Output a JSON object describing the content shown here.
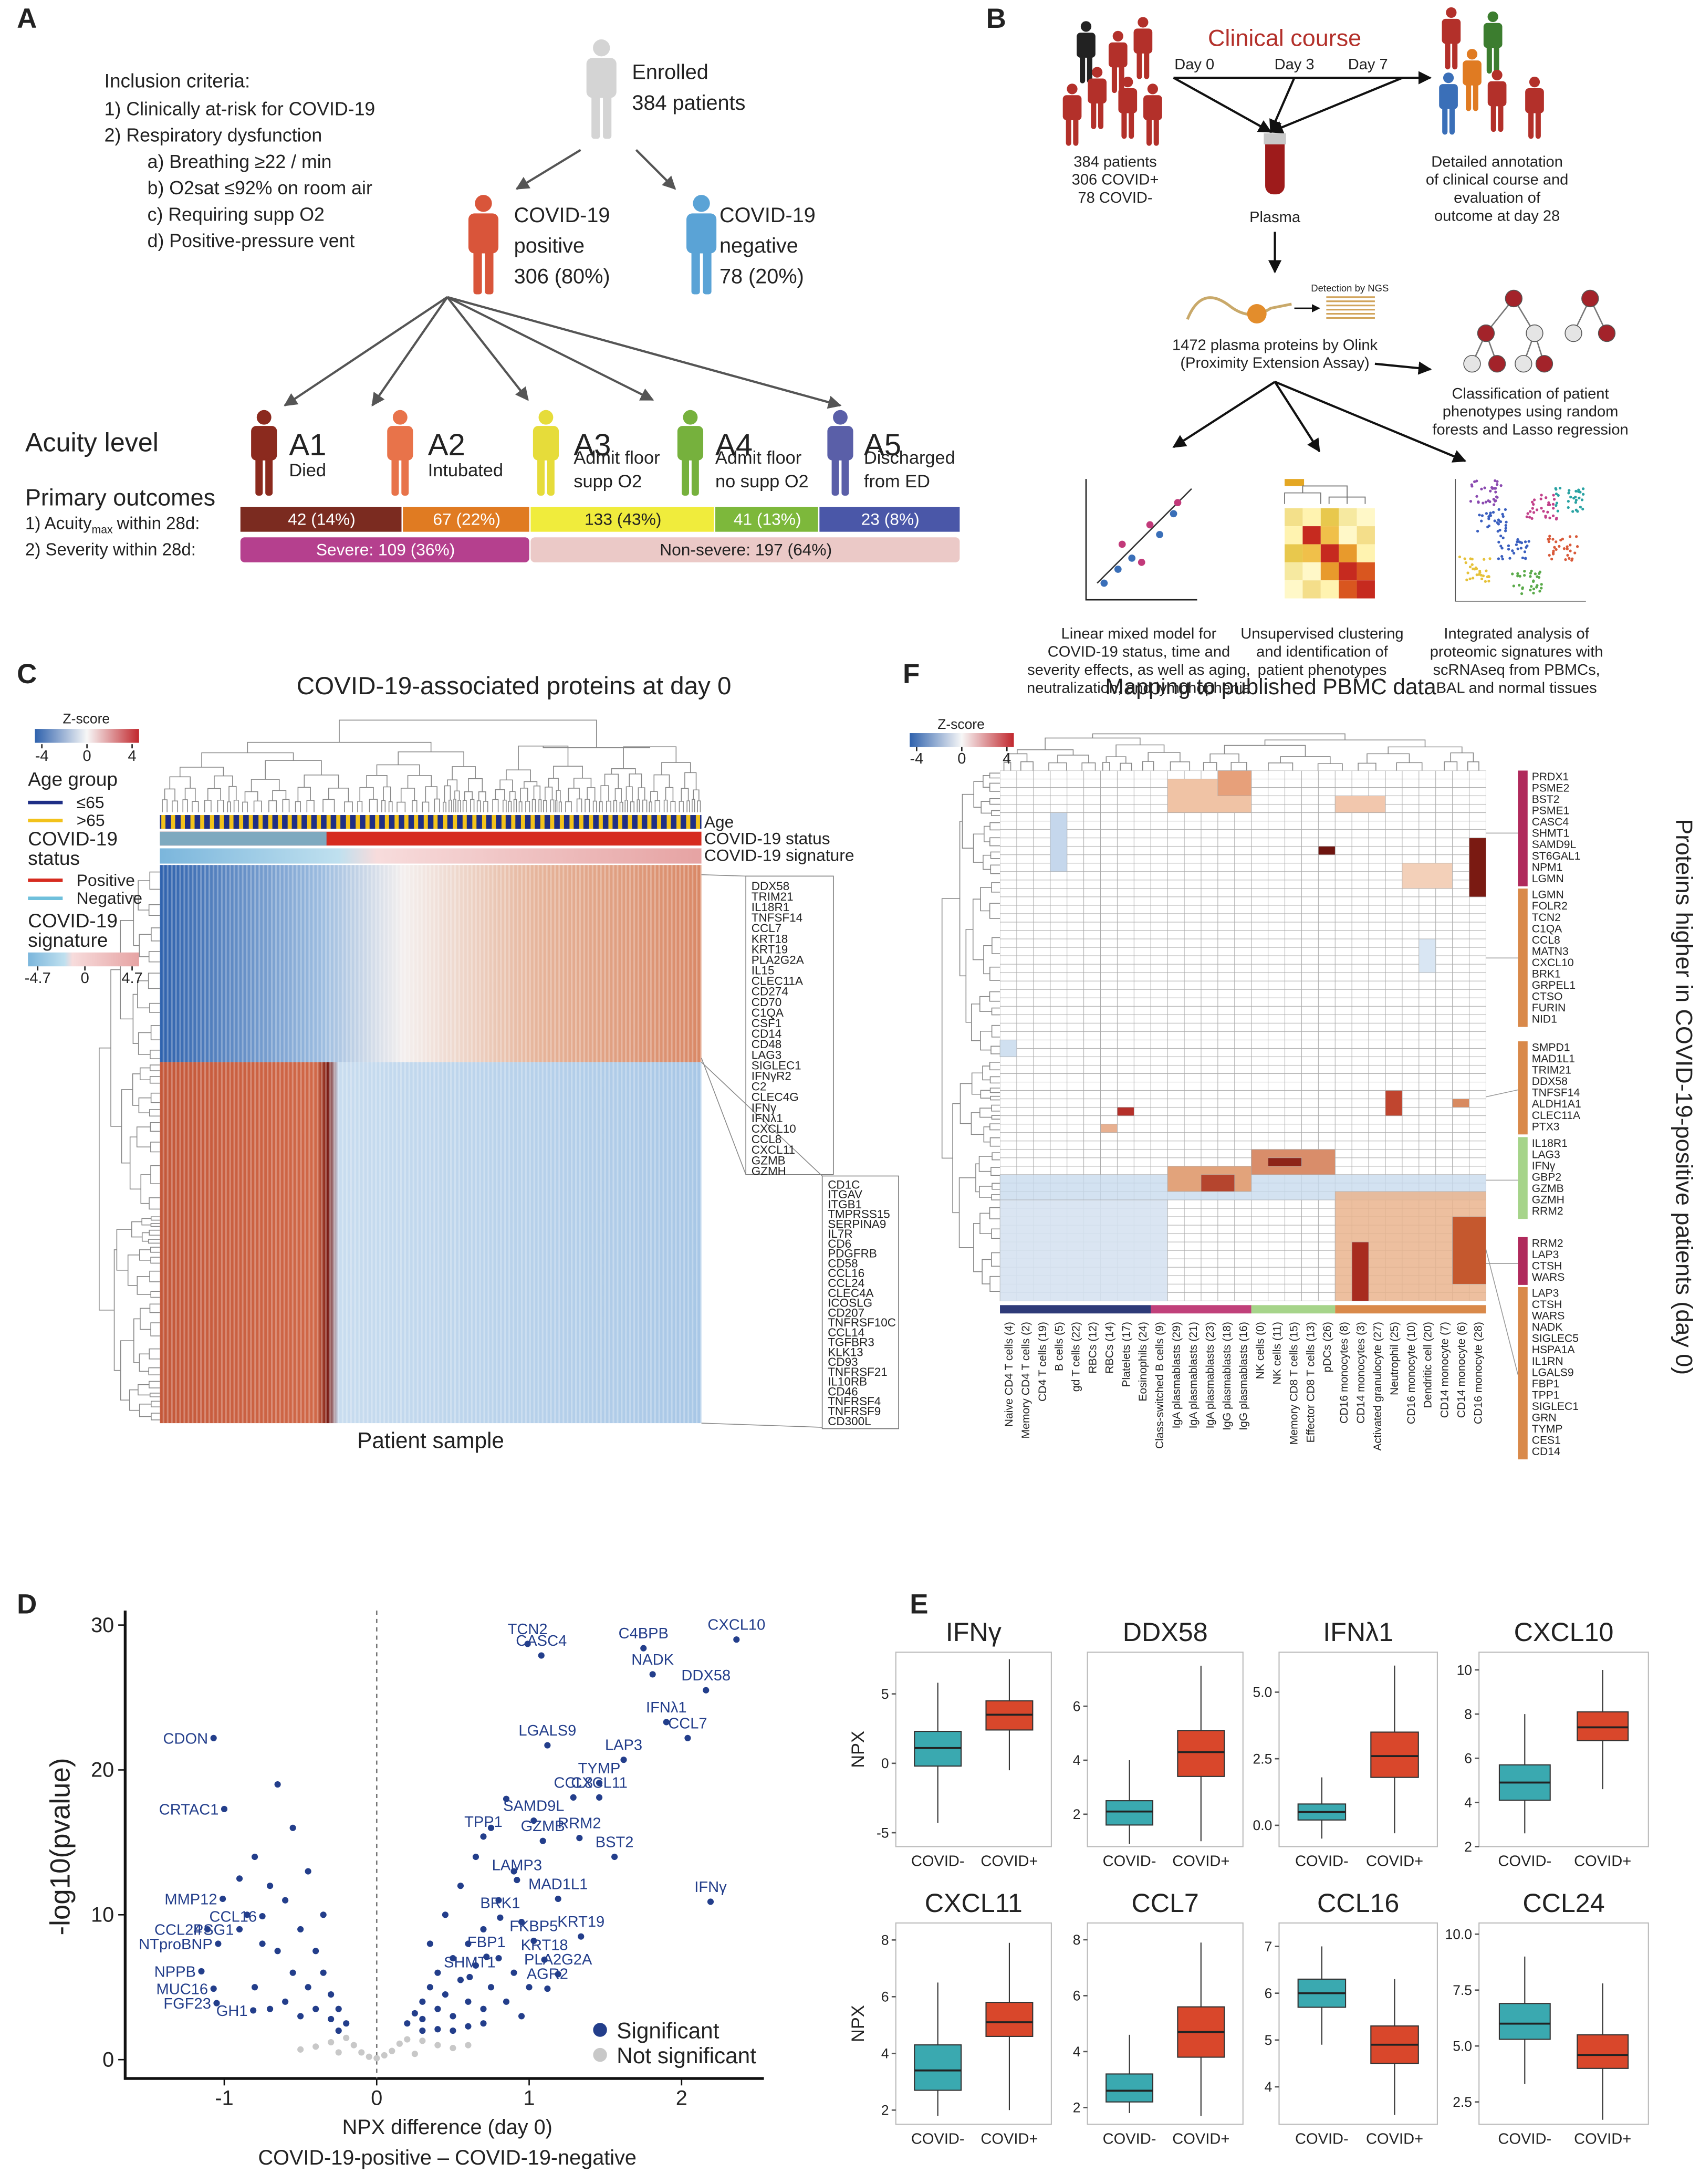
{
  "panel_a": {
    "label": "A",
    "inclusion_title": "Inclusion criteria:",
    "criteria": [
      "1)  Clinically at-risk for COVID-19",
      "2)  Respiratory dysfunction"
    ],
    "subcriteria": [
      "a)  Breathing ≥22 / min",
      "b)  O2sat ≤92% on room air",
      "c)  Requiring supp O2",
      "d)  Positive-pressure vent"
    ],
    "enrolled": [
      "Enrolled",
      "384 patients"
    ],
    "positive": [
      "COVID-19",
      "positive",
      "306 (80%)"
    ],
    "negative": [
      "COVID-19",
      "negative",
      "78 (20%)"
    ],
    "acuity_title": "Acuity level",
    "levels": [
      {
        "name": "A1",
        "desc": [
          "Died"
        ],
        "color": "#8b2a1e"
      },
      {
        "name": "A2",
        "desc": [
          "Intubated"
        ],
        "color": "#e8734a"
      },
      {
        "name": "A3",
        "desc": [
          "Admit floor",
          "supp O2"
        ],
        "color": "#e6dc3a"
      },
      {
        "name": "A4",
        "desc": [
          "Admit floor",
          "no supp O2"
        ],
        "color": "#76b13d"
      },
      {
        "name": "A5",
        "desc": [
          "Discharged",
          "from ED"
        ],
        "color": "#5a5fa8"
      }
    ],
    "outcomes_title": "Primary outcomes",
    "outcome1": {
      "prefix": "1) Acuity",
      "sub": "max",
      "suffix": "within 28d:"
    },
    "outcome2": "2) Severity within 28d:",
    "acuity_segments": [
      {
        "label": "42 (14%)",
        "color": "#7b2b20"
      },
      {
        "label": "67 (22%)",
        "color": "#e07b22"
      },
      {
        "label": "133 (43%)",
        "color": "#f0ec3c"
      },
      {
        "label": "41 (13%)",
        "color": "#7db83b"
      },
      {
        "label": "23 (8%)",
        "color": "#4a57a8"
      }
    ],
    "severity_segments": [
      {
        "label": "Severe: 109 (36%)",
        "color": "#b5408e"
      },
      {
        "label": "Non-severe: 197 (64%)",
        "color": "#ebc9c7"
      }
    ]
  },
  "panel_b": {
    "label": "B",
    "course_title": "Clinical course",
    "days": [
      "Day 0",
      "Day 3",
      "Day 7"
    ],
    "cohort": [
      "384 patients",
      "306 COVID+",
      "78 COVID-"
    ],
    "annotation": [
      "Detailed annotation",
      "of clinical course and",
      "evaluation of",
      "outcome at day 28"
    ],
    "plasma": "Plasma",
    "ngs": "Detection by NGS",
    "olink": [
      "1472 plasma proteins by Olink",
      "(Proximity Extension Assay)"
    ],
    "classification": [
      "Classification of patient",
      "phenotypes using random",
      "forests and Lasso regression"
    ],
    "linear": [
      "Linear mixed model for",
      "COVID-19 status, time and",
      "severity effects, as well as aging,",
      "neutralization, and lymphophenia"
    ],
    "clustering": [
      "Unsupervised clustering",
      "and identification of",
      "patient phenotypes"
    ],
    "integrated": [
      "Integrated analysis of",
      "proteomic signatures with",
      "scRNAseq from PBMCs,",
      "BAL and normal tissues"
    ]
  },
  "panel_c": {
    "label": "C",
    "title": "COVID-19-associated proteins at day 0",
    "zscore_title": "Z-score",
    "zscore_ticks": [
      -4,
      0,
      4
    ],
    "age_title": "Age group",
    "age_items": [
      {
        "label": "≤65",
        "color": "#1f2f86"
      },
      {
        "label": ">65",
        "color": "#f2c21b"
      }
    ],
    "status_title": [
      "COVID-19",
      "status"
    ],
    "status_items": [
      {
        "label": "Positive",
        "color": "#d62b1f"
      },
      {
        "label": "Negative",
        "color": "#6fc0dc"
      }
    ],
    "signature_title": [
      "COVID-19",
      "signature"
    ],
    "signature_ticks": [
      {
        "value": -4.7,
        "label": "-4.7"
      },
      0,
      {
        "value": 4.7,
        "label": "4.7"
      }
    ],
    "row_annotations": [
      "Age",
      "COVID-19 status",
      "COVID-19 signature"
    ],
    "xlabel": "Patient sample",
    "genes_up": [
      "DDX58",
      "TRIM21",
      "IL18R1",
      "TNFSF14",
      "CCL7",
      "KRT18",
      "KRT19",
      "PLA2G2A",
      "IL15",
      "CLEC11A",
      "CD274",
      "CD70",
      "C1QA",
      "CSF1",
      "CD14",
      "CD48",
      "LAG3",
      "SIGLEC1",
      "IFNγR2",
      "C2",
      "CLEC4G",
      "IFNγ",
      "IFNλ1",
      "CXCL10",
      "CCL8",
      "CXCL11",
      "GZMB",
      "GZMH"
    ],
    "genes_down": [
      "CD1C",
      "ITGAV",
      "ITGB1",
      "TMPRSS15",
      "SERPINA9",
      "IL7R",
      "CD6",
      "PDGFRB",
      "CD58",
      "CCL16",
      "CCL24",
      "CLEC4A",
      "ICOSLG",
      "CD207",
      "TNFRSF10C",
      "CCL14",
      "TGFBR3",
      "KLK13",
      "CD93",
      "TNFRSF21",
      "IL10RB",
      "CD46",
      "TNFRSF4",
      "TNFRSF9",
      "CD300L"
    ]
  },
  "panel_f": {
    "label": "F",
    "title": "Mapping to published PBMC data",
    "zscore_title": "Z-score",
    "zscore_ticks": [
      -4,
      0,
      4
    ],
    "side_label": "Proteins higher in COVID-19-positive patients (day 0)",
    "columns": [
      "Naive CD4 T cells (4)",
      "Memory CD4 T cells (2)",
      "CD4 T cells (19)",
      "B cells (5)",
      "gd T cells (22)",
      "RBCs (12)",
      "RBCs (14)",
      "Platelets (17)",
      "Eosinophils (24)",
      "Class-switched B cells (9)",
      "IgA plasmablasts (29)",
      "IgA plasmablasts (21)",
      "IgA plasmablasts (23)",
      "IgG plasmablasts (18)",
      "IgG plasmablasts (16)",
      "NK cells (0)",
      "NK cells (11)",
      "Memory CD8 T cells (15)",
      "Effector CD8 T cells (13)",
      "pDCs (26)",
      "CD16 monocytes (8)",
      "CD14 monocytes (3)",
      "Activated granulocyte (27)",
      "Neutrophil (25)",
      "CD16 monocyte (10)",
      "Dendritic cell (20)",
      "CD14 monocyte (7)",
      "CD14 monocyte (6)",
      "CD16 monocyte (28)"
    ],
    "group_colors": [
      "#2e3a78",
      "#c0407a",
      "#a6d48a",
      "#d9894a"
    ],
    "gene_groups": [
      {
        "color": "#b02a5c",
        "genes": [
          "PRDX1",
          "PSME2",
          "BST2",
          "PSME1",
          "CASC4",
          "SHMT1",
          "SAMD9L",
          "ST6GAL1",
          "NPM1",
          "LGMN"
        ]
      },
      {
        "color": "#d9894a",
        "genes": [
          "LGMN",
          "FOLR2",
          "TCN2",
          "C1QA",
          "CCL8",
          "MATN3",
          "CXCL10",
          "BRK1",
          "GRPEL1",
          "CTSO",
          "FURIN",
          "NID1"
        ]
      },
      {
        "color": "#d9894a",
        "genes": [
          "SMPD1",
          "MAD1L1",
          "TRIM21",
          "DDX58",
          "TNFSF14",
          "ALDH1A1",
          "CLEC11A",
          "PTX3"
        ]
      },
      {
        "color": "#a6d48a",
        "genes": [
          "IL18R1",
          "LAG3",
          "IFNγ",
          "GBP2",
          "GZMB",
          "GZMH",
          "RRM2"
        ]
      },
      {
        "color": "#b02a5c",
        "genes": [
          "RRM2",
          "LAP3",
          "CTSH",
          "WARS"
        ]
      },
      {
        "color": "#d9894a",
        "genes": [
          "LAP3",
          "CTSH",
          "WARS",
          "NADK",
          "SIGLEC5",
          "HSPA1A",
          "IL1RN",
          "LGALS9",
          "FBP1",
          "TPP1",
          "SIGLEC1",
          "GRN",
          "TYMP",
          "CES1",
          "CD14"
        ]
      }
    ]
  },
  "panel_d": {
    "label": "D"
  },
  "panel_e": {
    "label": "E",
    "ylabel": "NPX"
  },
  "chart_data": [
    {
      "type": "scatter",
      "ylabel": "-log10(pvalue)",
      "xlabel": [
        "NPX difference (day 0)",
        "COVID-19-positive – COVID-19-negative"
      ],
      "xlim": [
        -1.65,
        2.54
      ],
      "ylim": [
        -1.3,
        31
      ],
      "xticks": [
        -1,
        0,
        1,
        2
      ],
      "yticks": [
        0,
        10,
        20,
        30
      ],
      "series": [
        {
          "name": "Significant",
          "color": "#233e8b",
          "x": [
            0.2,
            0.25,
            0.3,
            0.3,
            0.35,
            0.4,
            0.4,
            0.45,
            0.5,
            0.5,
            0.55,
            0.6,
            0.6,
            0.65,
            0.7,
            0.7,
            0.75,
            0.8,
            0.8,
            0.85,
            0.9,
            0.9,
            0.95,
            1.0,
            0.35,
            0.45,
            0.55,
            0.65,
            0.75,
            0.85,
            0.5,
            0.6,
            0.4,
            0.3,
            0.7,
            0.95,
            -0.2,
            -0.25,
            -0.3,
            -0.3,
            -0.35,
            -0.4,
            -0.4,
            -0.45,
            -0.5,
            -0.5,
            -0.55,
            -0.6,
            -0.6,
            -0.65,
            -0.7,
            -0.7,
            -0.75,
            -0.8,
            -0.8,
            -0.85,
            -0.9,
            -0.55,
            -0.65,
            -0.45,
            -0.35,
            -0.25
          ],
          "y": [
            2.5,
            3.2,
            4,
            2.8,
            5,
            3.5,
            6,
            4.5,
            7,
            3,
            5.5,
            8,
            4,
            6.5,
            9,
            3.5,
            5,
            11,
            7,
            4,
            13,
            6,
            9.5,
            5,
            8,
            10,
            12,
            14,
            16,
            18,
            2,
            2.3,
            2.1,
            2,
            2.5,
            3,
            2.5,
            3.5,
            4.5,
            2.8,
            6,
            3.5,
            7.5,
            5,
            9,
            3,
            6,
            11,
            4,
            7.5,
            12,
            3.5,
            8,
            14,
            5,
            10,
            12.5,
            16,
            19,
            13,
            10,
            2
          ]
        },
        {
          "name": "Not significant",
          "color": "#c8c8c8",
          "x": [
            -0.15,
            -0.1,
            -0.05,
            0,
            0.05,
            0.1,
            0.15,
            -0.2,
            0.2,
            -0.3,
            0.3,
            0.4,
            -0.4,
            0.5,
            -0.5,
            0.6,
            0.25,
            -0.25
          ],
          "y": [
            1,
            0.5,
            0.2,
            0.1,
            0.3,
            0.6,
            1.1,
            1.5,
            1.4,
            1.2,
            1.3,
            1,
            0.9,
            0.8,
            0.7,
            1,
            0.4,
            0.5
          ]
        }
      ],
      "labeled_points": {
        "color": "#233e8b",
        "labels": [
          "TCN2",
          "CASC4",
          "C4BPB",
          "NADK",
          "CXCL10",
          "DDX58",
          "IFNλ1",
          "CCL7",
          "LGALS9",
          "LAP3",
          "TYMP",
          "CCL8",
          "CXCL11",
          "SAMD9L",
          "TPP1",
          "GZMB",
          "RRM2",
          "BST2",
          "LAMP3",
          "MAD1L1",
          "IFNγ",
          "BRK1",
          "FKBP5",
          "KRT19",
          "FBP1",
          "KRT18",
          "PLA2G2A",
          "SHMT1",
          "AGR2",
          "CDON",
          "CRTAC1",
          "MMP12",
          "CCL24",
          "CCL16",
          "NTproBNP",
          "PSG1",
          "NPPB",
          "MUC16",
          "FGF23",
          "GH1"
        ],
        "x": [
          0.99,
          1.08,
          1.75,
          1.81,
          2.36,
          2.16,
          1.9,
          2.04,
          1.12,
          1.62,
          1.46,
          1.29,
          1.46,
          1.03,
          0.7,
          1.09,
          1.33,
          1.56,
          0.92,
          1.19,
          2.19,
          0.81,
          1.03,
          1.34,
          0.72,
          1.1,
          1.19,
          0.61,
          1.12,
          -1.07,
          -1.0,
          -1.01,
          -1.11,
          -0.75,
          -1.04,
          -0.9,
          -1.15,
          -1.07,
          -1.05,
          -0.81
        ],
        "y": [
          28.7,
          27.9,
          28.4,
          26.6,
          29,
          25.5,
          23.3,
          22.2,
          21.7,
          20.7,
          19.1,
          18.1,
          18.1,
          16.5,
          15.4,
          15.1,
          15.3,
          14,
          12.4,
          11.1,
          10.9,
          9.8,
          8.2,
          8.5,
          7.1,
          6.9,
          5.9,
          5.7,
          4.9,
          22.2,
          17.3,
          11.1,
          9,
          9.9,
          8,
          9,
          6.1,
          4.9,
          3.9,
          3.4
        ]
      }
    },
    {
      "type": "box",
      "title": "IFNγ",
      "categories": [
        "COVID-",
        "COVID+"
      ],
      "ylim": [
        -6,
        8
      ],
      "yticks": [
        -5,
        0,
        5
      ],
      "boxes": [
        {
          "color": "#3aa9b0",
          "whisker_low": -4.3,
          "q1": -0.2,
          "median": 1.1,
          "q3": 2.3,
          "whisker_high": 5.8
        },
        {
          "color": "#d9472b",
          "whisker_low": -0.5,
          "q1": 2.4,
          "median": 3.5,
          "q3": 4.5,
          "whisker_high": 7.5
        }
      ]
    },
    {
      "type": "box",
      "title": "DDX58",
      "categories": [
        "COVID-",
        "COVID+"
      ],
      "ylim": [
        0.8,
        8
      ],
      "yticks": [
        2,
        4,
        6
      ],
      "boxes": [
        {
          "color": "#3aa9b0",
          "whisker_low": 0.9,
          "q1": 1.6,
          "median": 2.1,
          "q3": 2.5,
          "whisker_high": 4.0
        },
        {
          "color": "#d9472b",
          "whisker_low": 1.0,
          "q1": 3.4,
          "median": 4.3,
          "q3": 5.1,
          "whisker_high": 7.5
        }
      ]
    },
    {
      "type": "box",
      "title": "IFNλ1",
      "categories": [
        "COVID-",
        "COVID+"
      ],
      "ylim": [
        -0.8,
        6.5
      ],
      "yticks": [
        {
          "value": 0,
          "label": "0.0"
        },
        2.5,
        {
          "value": 5,
          "label": "5.0"
        }
      ],
      "boxes": [
        {
          "color": "#3aa9b0",
          "whisker_low": -0.5,
          "q1": 0.2,
          "median": 0.5,
          "q3": 0.8,
          "whisker_high": 1.8
        },
        {
          "color": "#d9472b",
          "whisker_low": -0.3,
          "q1": 1.8,
          "median": 2.6,
          "q3": 3.5,
          "whisker_high": 6.0
        }
      ]
    },
    {
      "type": "box",
      "title": "CXCL10",
      "categories": [
        "COVID-",
        "COVID+"
      ],
      "ylim": [
        2,
        10.8
      ],
      "yticks": [
        2,
        4,
        6,
        8,
        10
      ],
      "boxes": [
        {
          "color": "#3aa9b0",
          "whisker_low": 2.6,
          "q1": 4.1,
          "median": 4.9,
          "q3": 5.7,
          "whisker_high": 8
        },
        {
          "color": "#d9472b",
          "whisker_low": 4.6,
          "q1": 6.8,
          "median": 7.4,
          "q3": 8.1,
          "whisker_high": 10
        }
      ]
    },
    {
      "type": "box",
      "title": "CXCL11",
      "categories": [
        "COVID-",
        "COVID+"
      ],
      "ylim": [
        1.5,
        8.6
      ],
      "yticks": [
        2,
        4,
        6,
        8
      ],
      "boxes": [
        {
          "color": "#3aa9b0",
          "whisker_low": 1.8,
          "q1": 2.7,
          "median": 3.4,
          "q3": 4.3,
          "whisker_high": 6.5
        },
        {
          "color": "#d9472b",
          "whisker_low": 2,
          "q1": 4.6,
          "median": 5.1,
          "q3": 5.8,
          "whisker_high": 7.9
        }
      ]
    },
    {
      "type": "box",
      "title": "CCL7",
      "categories": [
        "COVID-",
        "COVID+"
      ],
      "ylim": [
        1.4,
        8.6
      ],
      "yticks": [
        2,
        4,
        6,
        8
      ],
      "boxes": [
        {
          "color": "#3aa9b0",
          "whisker_low": 1.8,
          "q1": 2.2,
          "median": 2.6,
          "q3": 3.2,
          "whisker_high": 4.6
        },
        {
          "color": "#d9472b",
          "whisker_low": 1.7,
          "q1": 3.8,
          "median": 4.7,
          "q3": 5.6,
          "whisker_high": 7.9
        }
      ]
    },
    {
      "type": "box",
      "title": "CCL16",
      "categories": [
        "COVID-",
        "COVID+"
      ],
      "ylim": [
        3.2,
        7.5
      ],
      "yticks": [
        4,
        5,
        6,
        7
      ],
      "boxes": [
        {
          "color": "#3aa9b0",
          "whisker_low": 4.9,
          "q1": 5.7,
          "median": 6.0,
          "q3": 6.3,
          "whisker_high": 7.0
        },
        {
          "color": "#d9472b",
          "whisker_low": 3.4,
          "q1": 4.5,
          "median": 4.9,
          "q3": 5.3,
          "whisker_high": 6.3
        }
      ]
    },
    {
      "type": "box",
      "title": "CCL24",
      "categories": [
        "COVID-",
        "COVID+"
      ],
      "ylim": [
        1.5,
        10.5
      ],
      "yticks": [
        2.5,
        {
          "value": 5,
          "label": "5.0"
        },
        7.5,
        {
          "value": 10,
          "label": "10.0"
        }
      ],
      "boxes": [
        {
          "color": "#3aa9b0",
          "whisker_low": 3.3,
          "q1": 5.3,
          "median": 6.0,
          "q3": 6.9,
          "whisker_high": 9.0
        },
        {
          "color": "#d9472b",
          "whisker_low": 1.7,
          "q1": 4.0,
          "median": 4.6,
          "q3": 5.5,
          "whisker_high": 7.8
        }
      ]
    }
  ]
}
